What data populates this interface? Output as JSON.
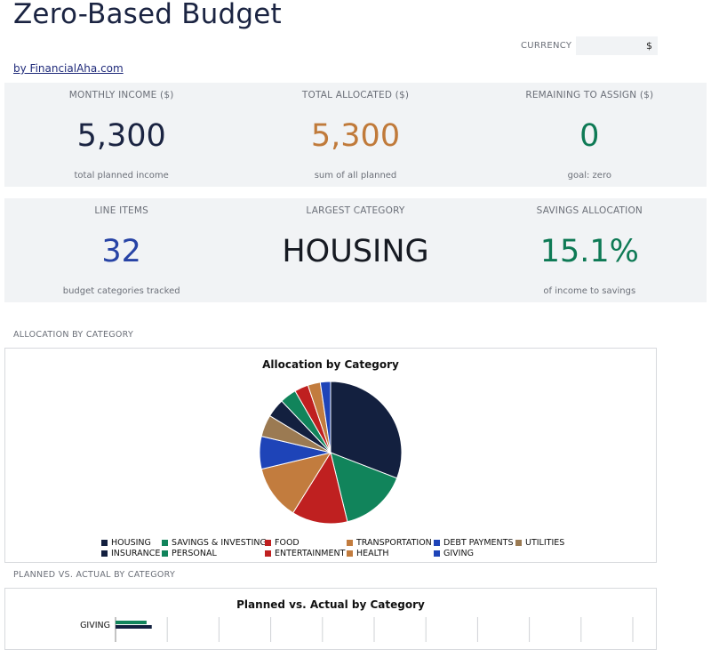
{
  "header": {
    "title": "Zero-Based Budget",
    "byline": "by FinancialAha.com",
    "currency_label": "CURRENCY",
    "currency_value": "$"
  },
  "kpis_row1": [
    {
      "label": "MONTHLY INCOME ($)",
      "value": "5,300",
      "sub": "total planned income",
      "color": "#1b2442"
    },
    {
      "label": "TOTAL ALLOCATED ($)",
      "value": "5,300",
      "sub": "sum of all planned",
      "color": "#c07a3a"
    },
    {
      "label": "REMAINING TO ASSIGN ($)",
      "value": "0",
      "sub": "goal: zero",
      "color": "#0e7a55"
    }
  ],
  "kpis_row2": [
    {
      "label": "LINE ITEMS",
      "value": "32",
      "sub": "budget categories tracked",
      "color": "#2743a5"
    },
    {
      "label": "LARGEST CATEGORY",
      "value": "HOUSING",
      "sub": "",
      "color": "#161a22"
    },
    {
      "label": "SAVINGS ALLOCATION",
      "value": "15.1%",
      "sub": "of income to savings",
      "color": "#0e7a55"
    }
  ],
  "sections": {
    "allocation_label": "ALLOCATION BY CATEGORY",
    "planned_label": "PLANNED VS. ACTUAL BY CATEGORY"
  },
  "chart_data": [
    {
      "type": "pie",
      "title": "Allocation by Category",
      "categories": [
        "HOUSING",
        "SAVINGS & INVESTING",
        "FOOD",
        "TRANSPORTATION",
        "DEBT PAYMENTS",
        "UTILITIES",
        "INSURANCE",
        "PERSONAL",
        "ENTERTAINMENT",
        "HEALTH",
        "GIVING"
      ],
      "values": [
        30.4,
        15.1,
        12.5,
        12.2,
        7.3,
        4.9,
        4.2,
        3.7,
        3.1,
        2.8,
        2.3
      ],
      "colors": [
        "#13203f",
        "#11845b",
        "#bf2020",
        "#c27c3e",
        "#1e44b8",
        "#9b7a52",
        "#13203f",
        "#11845b",
        "#bf2020",
        "#c27c3e",
        "#1e44b8"
      ],
      "legend_position": "bottom"
    },
    {
      "type": "bar",
      "title": "Planned vs. Actual by Category",
      "categories": [
        "GIVING"
      ],
      "series": [
        {
          "values": [
            120
          ],
          "color": "#11845b"
        },
        {
          "values": [
            140
          ],
          "color": "#13203f"
        }
      ],
      "xlim": [
        0,
        2000
      ]
    }
  ]
}
